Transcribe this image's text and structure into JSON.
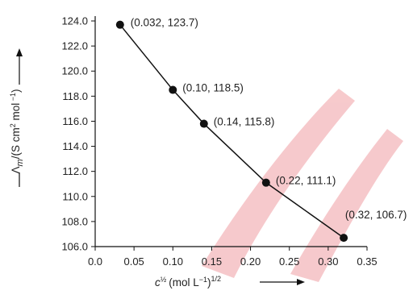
{
  "chart_data": {
    "type": "line",
    "x": [
      0.032,
      0.1,
      0.14,
      0.22,
      0.32
    ],
    "values": [
      123.7,
      118.5,
      115.8,
      111.1,
      106.7
    ],
    "point_labels": [
      "(0.032, 123.7)",
      "(0.10, 118.5)",
      "(0.14, 115.8)",
      "(0.22, 111.1)",
      "(0.32, 106.7)"
    ],
    "xlim": [
      0,
      0.35
    ],
    "ylim": [
      106,
      124
    ],
    "x_ticks": [
      "0.0",
      "0.05",
      "0.10",
      "0.15",
      "0.20",
      "0.25",
      "0.30",
      "0.35"
    ],
    "y_ticks": [
      "106.0",
      "108.0",
      "110.0",
      "112.0",
      "114.0",
      "116.0",
      "118.0",
      "120.0",
      "122.0",
      "124.0"
    ],
    "xlabel": {
      "symbol": "c",
      "exponent": "½",
      "unit_open": "(mol L",
      "unit_exp": "−1",
      "unit_close": ")",
      "outer_exp": "1/2"
    },
    "ylabel": {
      "symbol": "Λ",
      "sub": "m",
      "part1": "/(S cm",
      "sup1": "2",
      "part2": " mol",
      "sup2": " −1",
      "part3": ")"
    },
    "grid": false,
    "legend": "none",
    "colors": {
      "line": "#111111",
      "marker": "#111111",
      "axis": "#111111",
      "watermark": "#f4b9bc"
    }
  }
}
